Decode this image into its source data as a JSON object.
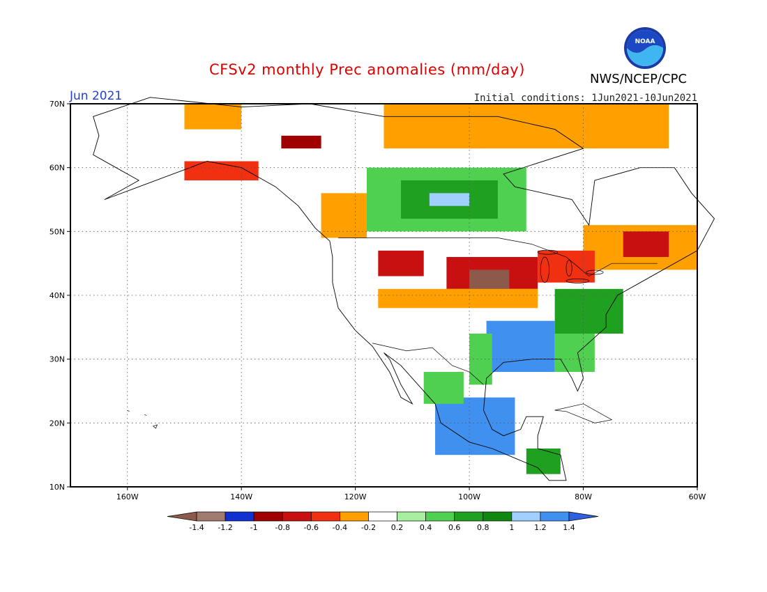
{
  "title": "CFSv2 monthly Prec anomalies (mm/day)",
  "month": "Jun 2021",
  "agency": "NWS/NCEP/CPC",
  "logo_text": "NOAA",
  "initial_conditions": "Initial conditions: 1Jun2021-10Jun2021",
  "lat_labels": [
    "70N",
    "60N",
    "50N",
    "40N",
    "30N",
    "20N",
    "10N"
  ],
  "lon_labels": [
    "160W",
    "140W",
    "120W",
    "100W",
    "80W",
    "60W"
  ],
  "colorbar": {
    "labels": [
      "-1.4",
      "-1.2",
      "-1",
      "-0.8",
      "-0.6",
      "-0.4",
      "-0.2",
      "0.2",
      "0.4",
      "0.6",
      "0.8",
      "1",
      "1.2",
      "1.4"
    ],
    "colors": [
      "#8b5a4a",
      "#a07a6e",
      "#1030d0",
      "#a00000",
      "#c81010",
      "#f03010",
      "#ffa000",
      "#ffffff",
      "#a8f0a0",
      "#50d050",
      "#20a020",
      "#108810",
      "#a0d0ff",
      "#4090f0",
      "#3060e0"
    ]
  },
  "map": {
    "lat_range": [
      10,
      70
    ],
    "lon_range": [
      -170,
      -60
    ],
    "regions": [
      {
        "name": "alaska-north",
        "color": "#ffa000",
        "lon": [
          -150,
          -140
        ],
        "lat": [
          66,
          70
        ]
      },
      {
        "name": "yukon-deficit",
        "color": "#a00000",
        "lon": [
          -133,
          -126
        ],
        "lat": [
          63,
          65
        ]
      },
      {
        "name": "alaska-coast-deficit",
        "color": "#f03010",
        "lon": [
          -150,
          -137
        ],
        "lat": [
          58,
          61
        ]
      },
      {
        "name": "canada-north-deficit",
        "color": "#ffa000",
        "lon": [
          -115,
          -65
        ],
        "lat": [
          63,
          70
        ]
      },
      {
        "name": "canada-plains-wet",
        "color": "#50d050",
        "lon": [
          -118,
          -90
        ],
        "lat": [
          50,
          60
        ]
      },
      {
        "name": "canada-plains-wet-core",
        "color": "#20a020",
        "lon": [
          -112,
          -95
        ],
        "lat": [
          52,
          58
        ]
      },
      {
        "name": "canada-plains-lightblue",
        "color": "#a0d0ff",
        "lon": [
          -107,
          -100
        ],
        "lat": [
          54,
          56
        ]
      },
      {
        "name": "bc-deficit",
        "color": "#ffa000",
        "lon": [
          -126,
          -118
        ],
        "lat": [
          49,
          56
        ]
      },
      {
        "name": "rockies-deficit",
        "color": "#c81010",
        "lon": [
          -116,
          -108
        ],
        "lat": [
          43,
          47
        ]
      },
      {
        "name": "midwest-deficit",
        "color": "#c81010",
        "lon": [
          -104,
          -88
        ],
        "lat": [
          41,
          46
        ]
      },
      {
        "name": "midwest-deficit-core",
        "color": "#8b5a4a",
        "lon": [
          -100,
          -93
        ],
        "lat": [
          41,
          44
        ]
      },
      {
        "name": "plains-orange",
        "color": "#ffa000",
        "lon": [
          -116,
          -88
        ],
        "lat": [
          38,
          41
        ]
      },
      {
        "name": "quebec-deficit",
        "color": "#ffa000",
        "lon": [
          -80,
          -60
        ],
        "lat": [
          44,
          51
        ]
      },
      {
        "name": "quebec-deficit-core",
        "color": "#c81010",
        "lon": [
          -73,
          -65
        ],
        "lat": [
          46,
          50
        ]
      },
      {
        "name": "great-lakes-deficit",
        "color": "#f03010",
        "lon": [
          -88,
          -78
        ],
        "lat": [
          42,
          47
        ]
      },
      {
        "name": "northeast-wet",
        "color": "#20a020",
        "lon": [
          -85,
          -73
        ],
        "lat": [
          34,
          41
        ]
      },
      {
        "name": "south-central-wet",
        "color": "#4090f0",
        "lon": [
          -97,
          -85
        ],
        "lat": [
          28,
          36
        ]
      },
      {
        "name": "southeast-green",
        "color": "#50d050",
        "lon": [
          -85,
          -78
        ],
        "lat": [
          28,
          34
        ]
      },
      {
        "name": "texas-green",
        "color": "#50d050",
        "lon": [
          -100,
          -96
        ],
        "lat": [
          26,
          34
        ]
      },
      {
        "name": "mexico-wet",
        "color": "#4090f0",
        "lon": [
          -106,
          -92
        ],
        "lat": [
          15,
          24
        ]
      },
      {
        "name": "mexico-green",
        "color": "#50d050",
        "lon": [
          -108,
          -101
        ],
        "lat": [
          23,
          28
        ]
      },
      {
        "name": "caribbean-mixed",
        "color": "#20a020",
        "lon": [
          -90,
          -84
        ],
        "lat": [
          12,
          16
        ]
      }
    ]
  }
}
